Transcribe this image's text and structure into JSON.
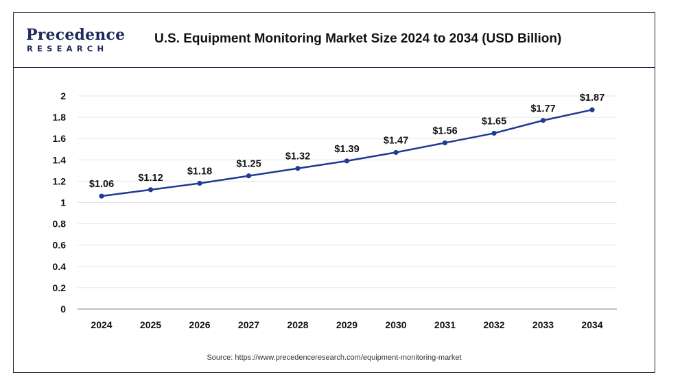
{
  "header": {
    "logo_top": "Precedence",
    "logo_bottom": "RESEARCH",
    "title": "U.S. Equipment Monitoring Market Size 2024 to 2034 (USD Billion)"
  },
  "source": "Source: https://www.precedenceresearch.com/equipment-monitoring-market",
  "chart_data": {
    "type": "line",
    "title": "U.S. Equipment Monitoring Market Size 2024 to 2034 (USD Billion)",
    "xlabel": "",
    "ylabel": "",
    "categories": [
      "2024",
      "2025",
      "2026",
      "2027",
      "2028",
      "2029",
      "2030",
      "2031",
      "2032",
      "2033",
      "2034"
    ],
    "series": [
      {
        "values": [
          1.06,
          1.12,
          1.18,
          1.25,
          1.32,
          1.39,
          1.47,
          1.56,
          1.65,
          1.77,
          1.87
        ],
        "labels": [
          "$1.06",
          "$1.12",
          "$1.18",
          "$1.25",
          "$1.32",
          "$1.39",
          "$1.47",
          "$1.56",
          "$1.65",
          "$1.77",
          "$1.87"
        ],
        "color": "#1f3a93"
      }
    ],
    "yticks": [
      "0",
      "0.2",
      "0.4",
      "0.6",
      "0.8",
      "1",
      "1.2",
      "1.4",
      "1.6",
      "1.8",
      "2"
    ],
    "ylim": [
      0,
      2
    ],
    "grid": true,
    "legend": "none"
  }
}
